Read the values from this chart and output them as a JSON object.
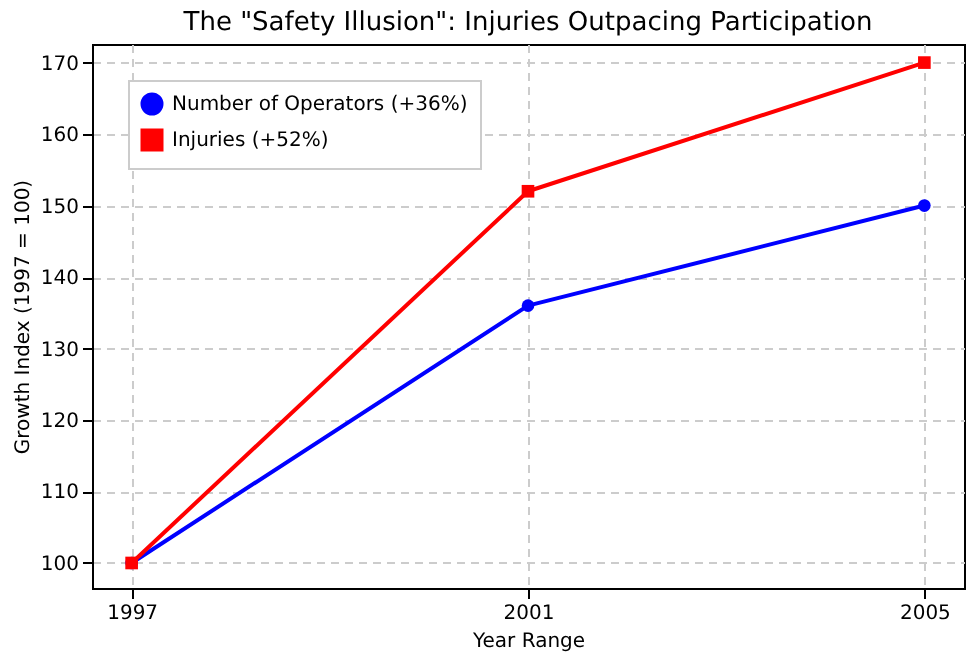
{
  "chart_data": {
    "type": "line",
    "title": "The \"Safety Illusion\": Injuries Outpacing Participation",
    "xlabel": "Year Range",
    "ylabel": "Growth Index (1997 = 100)",
    "x": [
      1997,
      2001,
      2005
    ],
    "series": [
      {
        "name": "Number of Operators (+36%)",
        "color": "#0000ff",
        "marker": "circle",
        "values": [
          100,
          136,
          150
        ]
      },
      {
        "name": "Injuries (+52%)",
        "color": "#ff0000",
        "marker": "square",
        "values": [
          100,
          152,
          170
        ]
      }
    ],
    "xlim": [
      1996.6,
      2005.4
    ],
    "xticks": [
      1997,
      2001,
      2005
    ],
    "ylim": [
      96.5,
      172.6
    ],
    "yticks": [
      100,
      110,
      120,
      130,
      140,
      150,
      160,
      170
    ],
    "grid": true,
    "legend": "top left",
    "line_style": "solid"
  }
}
